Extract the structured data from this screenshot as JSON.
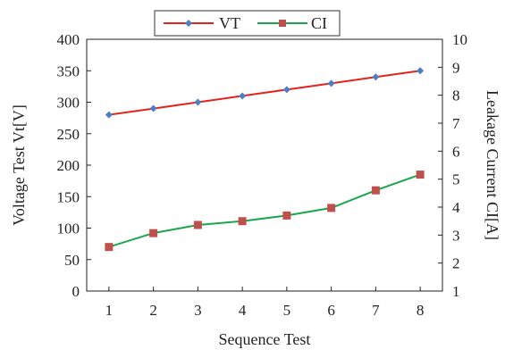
{
  "chart_data": {
    "type": "line",
    "xlabel": "Sequence Test",
    "ylabel_left": "Voltage Test Vt[V]",
    "ylabel_right": "Leakage Current CI[A]",
    "x": [
      1,
      2,
      3,
      4,
      5,
      6,
      7,
      8
    ],
    "y_left_range": [
      0,
      400
    ],
    "y_left_ticks": [
      0,
      50,
      100,
      150,
      200,
      250,
      300,
      350,
      400
    ],
    "y_right_range": [
      1,
      10
    ],
    "y_right_ticks": [
      1,
      2,
      3,
      4,
      5,
      6,
      7,
      8,
      9,
      10
    ],
    "grid": false,
    "legend_position": "top-center",
    "series": [
      {
        "name": "VT",
        "axis": "left",
        "line_color": "#e3231b",
        "marker": "diamond",
        "marker_color": "#4e7fc2",
        "values": [
          280,
          290,
          300,
          310,
          320,
          330,
          340,
          350
        ]
      },
      {
        "name": "CI",
        "axis": "left",
        "line_color": "#1aa64a",
        "marker": "square",
        "marker_color": "#c0504d",
        "values": [
          70,
          92,
          105,
          111,
          120,
          132,
          160,
          185
        ]
      }
    ]
  }
}
